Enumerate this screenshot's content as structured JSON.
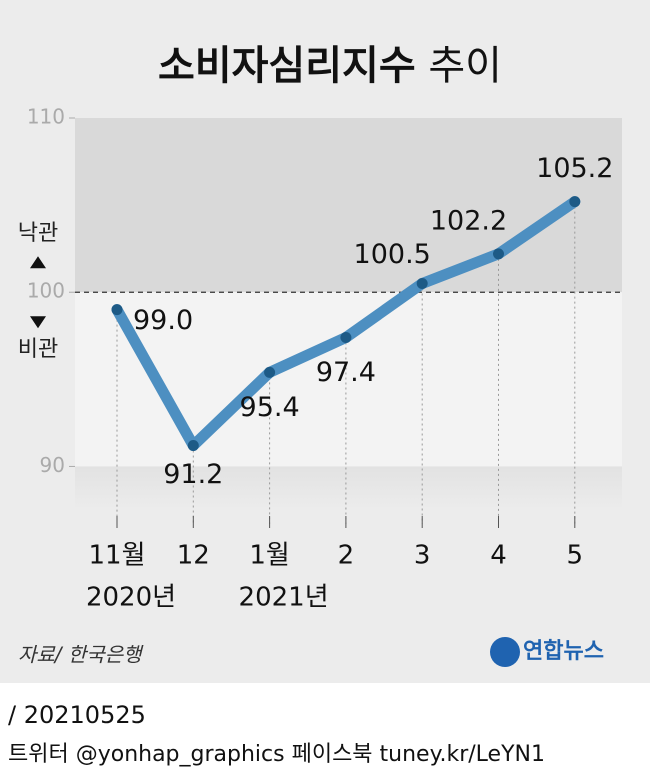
{
  "chart_data": {
    "type": "line",
    "title": "소비자심리지수",
    "title_suffix": "추이",
    "categories": [
      "11월",
      "12",
      "1월",
      "2",
      "3",
      "4",
      "5"
    ],
    "x_sublabels": [
      "2020년",
      null,
      "2021년",
      null,
      null,
      null,
      null
    ],
    "series": [
      {
        "name": "소비자심리지수",
        "color": "#4d8fc1",
        "values": [
          99.0,
          91.2,
          95.4,
          97.4,
          100.5,
          102.2,
          105.2
        ],
        "value_labels": [
          "99.0",
          "91.2",
          "95.4",
          "97.4",
          "100.5",
          "102.2",
          "105.2"
        ]
      }
    ],
    "ylim": [
      87.5,
      110
    ],
    "yticks": [
      90,
      100,
      110
    ],
    "reference_line": 100,
    "annotations": {
      "above": "낙관",
      "below": "비관"
    },
    "source": "자료/ 한국은행",
    "logo": "연합뉴스",
    "date": "/ 20210525",
    "footer": "트위터 @yonhap_graphics  페이스북 tuney.kr/LeYN1"
  }
}
